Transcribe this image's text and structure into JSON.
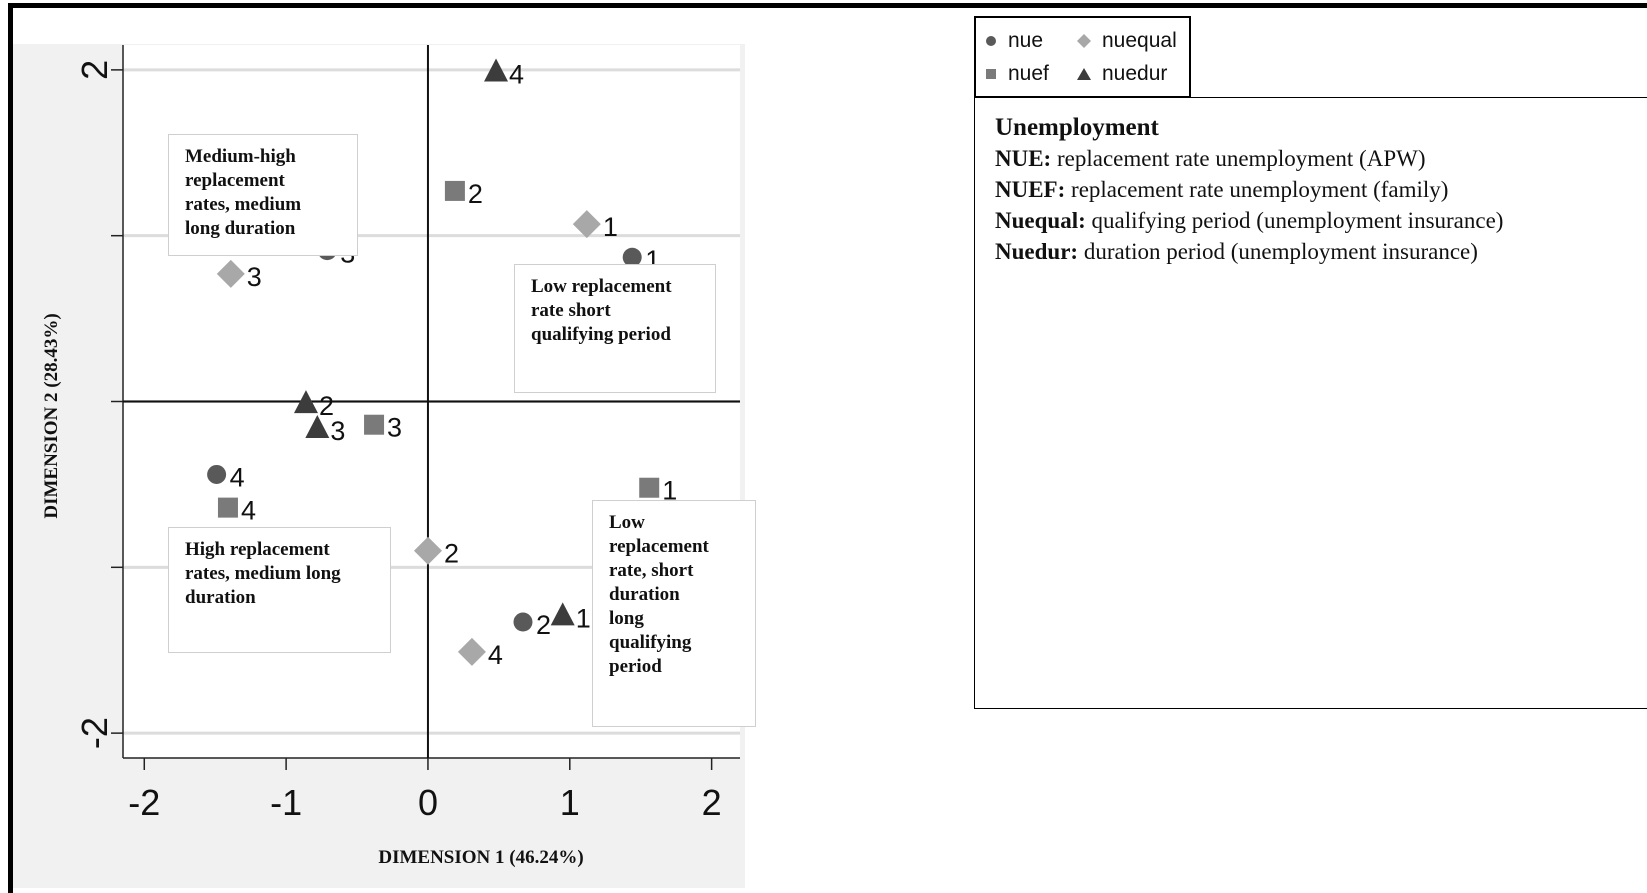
{
  "chart_data": {
    "type": "scatter",
    "xlabel": "DIMENSION 1 (46.24%)",
    "ylabel": "DIMENSION 2 (28.43%)",
    "xlim": [
      -2.15,
      2.2
    ],
    "ylim": [
      -2.15,
      2.15
    ],
    "xticks": [
      -2,
      -1,
      0,
      1,
      2
    ],
    "yticks": [
      {
        "value": 2,
        "label": "2"
      },
      {
        "value": 1,
        "label": ""
      },
      {
        "value": 0,
        "label": ""
      },
      {
        "value": -1,
        "label": ""
      },
      {
        "value": -2,
        "label": "-2"
      }
    ],
    "grid": true,
    "legend_position": "top-right, outside",
    "colors": {
      "nue": "#595959",
      "nuef": "#7a7a7a",
      "nuequal": "#a8a8a8",
      "nuedur": "#3c3c3c"
    },
    "series": [
      {
        "name": "nue",
        "marker": "circle",
        "points": [
          {
            "x": 1.44,
            "y": 0.87,
            "label": "1"
          },
          {
            "x": 0.67,
            "y": -1.33,
            "label": "2"
          },
          {
            "x": -0.71,
            "y": 0.91,
            "label": "3"
          },
          {
            "x": -1.49,
            "y": -0.44,
            "label": "4"
          }
        ]
      },
      {
        "name": "nuef",
        "marker": "square",
        "points": [
          {
            "x": 1.56,
            "y": -0.52,
            "label": "1"
          },
          {
            "x": 0.19,
            "y": 1.27,
            "label": "2"
          },
          {
            "x": -0.38,
            "y": -0.14,
            "label": "3"
          },
          {
            "x": -1.41,
            "y": -0.64,
            "label": "4"
          }
        ]
      },
      {
        "name": "nuequal",
        "marker": "diamond",
        "points": [
          {
            "x": 1.12,
            "y": 1.07,
            "label": "1"
          },
          {
            "x": 0.0,
            "y": -0.9,
            "label": "2"
          },
          {
            "x": -1.39,
            "y": 0.77,
            "label": "3"
          },
          {
            "x": 0.31,
            "y": -1.51,
            "label": "4"
          }
        ]
      },
      {
        "name": "nuedur",
        "marker": "triangle",
        "points": [
          {
            "x": 0.95,
            "y": -1.29,
            "label": "1"
          },
          {
            "x": -0.86,
            "y": -0.01,
            "label": "2"
          },
          {
            "x": -0.78,
            "y": -0.16,
            "label": "3"
          },
          {
            "x": 0.48,
            "y": 1.99,
            "label": "4"
          }
        ]
      }
    ],
    "annotations": [
      "Medium-high replacement rates, medium long duration",
      "Low replacement rate  short qualifying period",
      "High replacement rates, medium long duration",
      "Low replacement rate, short duration long qualifying period"
    ]
  },
  "annotations": {
    "medium_high": "Medium-high\nreplacement\nrates, medium\nlong duration",
    "low_short": "Low replacement\nrate  short\nqualifying period",
    "high": "High replacement\nrates, medium long\nduration",
    "low_long": "Low\nreplacement\nrate, short\nduration\nlong\nqualifying\nperiod"
  },
  "legend": {
    "items": [
      {
        "name": "nue",
        "icon": "circle-icon"
      },
      {
        "name": "nuequal",
        "icon": "diamond-icon"
      },
      {
        "name": "nuef",
        "icon": "square-icon"
      },
      {
        "name": "nuedur",
        "icon": "triangle-icon"
      }
    ]
  },
  "info": {
    "title": "Unemployment",
    "lines": [
      {
        "term": "NUE:",
        "desc": " replacement rate unemployment (APW)"
      },
      {
        "term": "NUEF:",
        "desc": " replacement rate unemployment (family)"
      },
      {
        "term": "Nuequal:",
        "desc": " qualifying period (unemployment insurance)"
      },
      {
        "term": "Nuedur:",
        "desc": " duration period (unemployment insurance)"
      }
    ]
  }
}
